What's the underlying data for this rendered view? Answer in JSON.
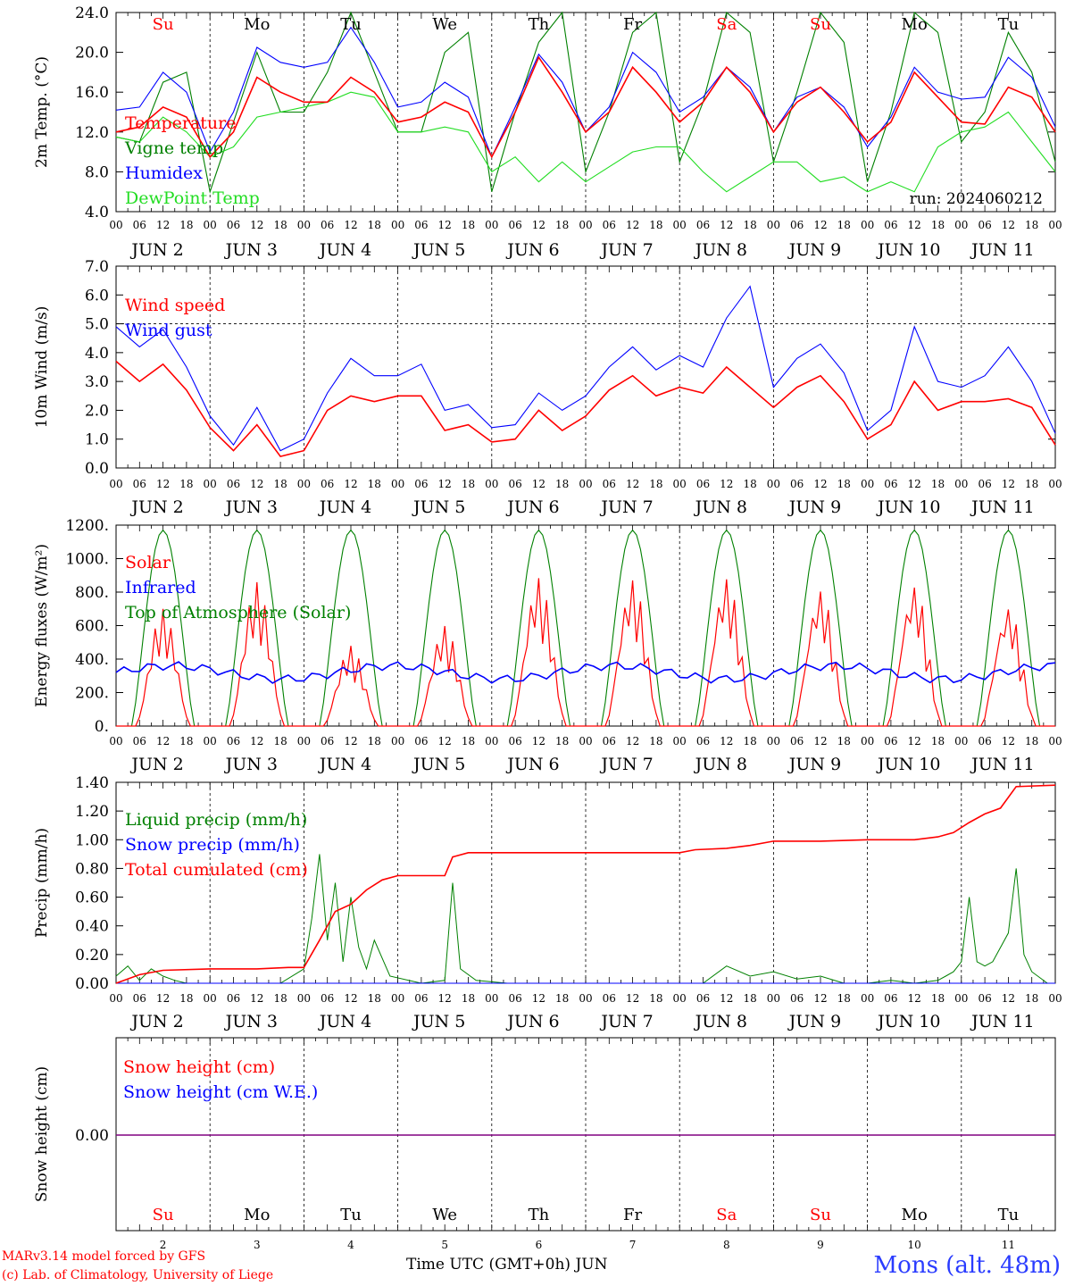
{
  "footer": {
    "model_line": "MARv3.14 model forced by GFS",
    "copyright_line": "(c) Lab. of Climatology, University of Liege",
    "time_label": "Time UTC (GMT+0h)",
    "month_label": "JUN",
    "station": "Mons (alt. 48m)"
  },
  "colors": {
    "red": "#ff0000",
    "green": "#008000",
    "blue": "#0000ff",
    "lightgreen": "#22dd22",
    "purple": "#800080"
  },
  "hour_ticks": [
    "00",
    "06",
    "12",
    "18"
  ],
  "day_labels": [
    "JUN  2",
    "JUN  3",
    "JUN  4",
    "JUN  5",
    "JUN  6",
    "JUN  7",
    "JUN  8",
    "JUN  9",
    "JUN 10",
    "JUN 11"
  ],
  "weekdays": [
    {
      "label": "Su",
      "color": "#ff0000"
    },
    {
      "label": "Mo",
      "color": "#000000"
    },
    {
      "label": "Tu",
      "color": "#000000"
    },
    {
      "label": "We",
      "color": "#000000"
    },
    {
      "label": "Th",
      "color": "#000000"
    },
    {
      "label": "Fr",
      "color": "#000000"
    },
    {
      "label": "Sa",
      "color": "#ff0000"
    },
    {
      "label": "Su",
      "color": "#ff0000"
    },
    {
      "label": "Mo",
      "color": "#000000"
    },
    {
      "label": "Tu",
      "color": "#000000"
    }
  ],
  "day_numbers": [
    "2",
    "3",
    "4",
    "5",
    "6",
    "7",
    "8",
    "9",
    "10",
    "11"
  ],
  "chart_data": [
    {
      "type": "line",
      "ylabel": "2m Temp. (°C)",
      "ylim": [
        4,
        24
      ],
      "yticks": [
        "4.0",
        "8.0",
        "12.0",
        "16.0",
        "20.0",
        "24.0"
      ],
      "run_label": "run: 2024060212",
      "x_unit": "hours since 2024-06-02 00 UTC",
      "series": [
        {
          "name": "Temperature",
          "color": "#ff0000",
          "x": [
            0,
            6,
            12,
            18,
            24,
            30,
            36,
            42,
            48,
            54,
            60,
            66,
            72,
            78,
            84,
            90,
            96,
            102,
            108,
            114,
            120,
            126,
            132,
            138,
            144,
            150,
            156,
            162,
            168,
            174,
            180,
            186,
            192,
            198,
            204,
            210,
            216,
            222,
            228,
            234,
            240
          ],
          "y": [
            12,
            12.5,
            14.5,
            13.5,
            9.5,
            12,
            17.5,
            16,
            15,
            15,
            17.5,
            16,
            13,
            13.5,
            15,
            14,
            9.5,
            14,
            19.5,
            16,
            12,
            14,
            18.5,
            16,
            13,
            15,
            18.5,
            16,
            12,
            15,
            16.5,
            14,
            11,
            13,
            18,
            15.5,
            13,
            12.8,
            16.5,
            15.5,
            12
          ]
        },
        {
          "name": "Vigne temp",
          "color": "#008000",
          "x": [
            0,
            6,
            12,
            18,
            24,
            30,
            36,
            42,
            48,
            54,
            60,
            66,
            72,
            78,
            84,
            90,
            96,
            102,
            108,
            114,
            120,
            126,
            132,
            138,
            144,
            150,
            156,
            162,
            168,
            174,
            180,
            186,
            192,
            198,
            204,
            210,
            216,
            222,
            228,
            234,
            240
          ],
          "y": [
            11.5,
            11,
            17,
            18,
            6,
            13,
            20,
            14,
            14,
            18,
            24,
            18,
            12,
            12,
            20,
            22,
            6,
            14,
            21,
            24,
            8,
            14,
            22,
            24,
            9,
            15,
            24,
            22,
            9,
            16,
            24,
            21,
            7,
            14,
            24,
            22,
            11,
            14,
            22,
            18,
            9
          ]
        },
        {
          "name": "Humidex",
          "color": "#0000ff",
          "x": [
            0,
            6,
            12,
            18,
            24,
            30,
            36,
            42,
            48,
            54,
            60,
            66,
            72,
            78,
            84,
            90,
            96,
            102,
            108,
            114,
            120,
            126,
            132,
            138,
            144,
            150,
            156,
            162,
            168,
            174,
            180,
            186,
            192,
            198,
            204,
            210,
            216,
            222,
            228,
            234,
            240
          ],
          "y": [
            14.2,
            14.5,
            18,
            16,
            10,
            14,
            20.5,
            19,
            18.5,
            19,
            22.5,
            19,
            14.5,
            15,
            17,
            15.5,
            9.5,
            14.5,
            19.8,
            17,
            12,
            14.5,
            20,
            18,
            14,
            15.5,
            18.5,
            16.5,
            12,
            15.5,
            16.5,
            14.5,
            10.5,
            13.5,
            18.5,
            16,
            15.3,
            15.5,
            19.5,
            17.5,
            12.5
          ]
        },
        {
          "name": "DewPoint Temp",
          "color": "#22dd22",
          "x": [
            0,
            6,
            12,
            18,
            24,
            30,
            36,
            42,
            48,
            54,
            60,
            66,
            72,
            78,
            84,
            90,
            96,
            102,
            108,
            114,
            120,
            126,
            132,
            138,
            144,
            150,
            156,
            162,
            168,
            174,
            180,
            186,
            192,
            198,
            204,
            210,
            216,
            222,
            228,
            234,
            240
          ],
          "y": [
            11.5,
            11,
            13.5,
            12,
            9.5,
            10.5,
            13.5,
            14,
            14.5,
            15,
            16,
            15.5,
            12,
            12,
            12.5,
            12,
            8,
            9.5,
            7,
            9,
            7,
            8.5,
            10,
            10.5,
            10.5,
            8,
            6,
            7.5,
            9,
            9,
            7,
            7.5,
            6,
            7,
            6,
            10.5,
            12,
            12.5,
            14,
            11,
            8
          ]
        }
      ]
    },
    {
      "type": "line",
      "ylabel": "10m Wind (m/s)",
      "ylim": [
        0,
        7
      ],
      "yticks": [
        "0.0",
        "1.0",
        "2.0",
        "3.0",
        "4.0",
        "5.0",
        "6.0",
        "7.0"
      ],
      "ref_line": 5.0,
      "series": [
        {
          "name": "Wind speed",
          "color": "#ff0000",
          "x": [
            0,
            6,
            12,
            18,
            24,
            30,
            36,
            42,
            48,
            54,
            60,
            66,
            72,
            78,
            84,
            90,
            96,
            102,
            108,
            114,
            120,
            126,
            132,
            138,
            144,
            150,
            156,
            162,
            168,
            174,
            180,
            186,
            192,
            198,
            204,
            210,
            216,
            222,
            228,
            234,
            240
          ],
          "y": [
            3.7,
            3,
            3.6,
            2.7,
            1.4,
            0.6,
            1.5,
            0.4,
            0.6,
            2,
            2.5,
            2.3,
            2.5,
            2.5,
            1.3,
            1.5,
            0.9,
            1,
            2,
            1.3,
            1.8,
            2.7,
            3.2,
            2.5,
            2.8,
            2.6,
            3.5,
            2.8,
            2.1,
            2.8,
            3.2,
            2.3,
            1,
            1.5,
            3,
            2,
            2.3,
            2.3,
            2.4,
            2.1,
            0.8
          ]
        },
        {
          "name": "Wind gust",
          "color": "#0000ff",
          "x": [
            0,
            6,
            12,
            18,
            24,
            30,
            36,
            42,
            48,
            54,
            60,
            66,
            72,
            78,
            84,
            90,
            96,
            102,
            108,
            114,
            120,
            126,
            132,
            138,
            144,
            150,
            156,
            162,
            168,
            174,
            180,
            186,
            192,
            198,
            204,
            210,
            216,
            222,
            228,
            234,
            240
          ],
          "y": [
            4.9,
            4.2,
            4.8,
            3.5,
            1.8,
            0.8,
            2.1,
            0.6,
            1,
            2.6,
            3.8,
            3.2,
            3.2,
            3.6,
            2,
            2.2,
            1.4,
            1.5,
            2.6,
            2,
            2.5,
            3.5,
            4.2,
            3.4,
            3.9,
            3.5,
            5.2,
            6.3,
            2.8,
            3.8,
            4.3,
            3.3,
            1.3,
            2,
            4.9,
            3,
            2.8,
            3.2,
            4.2,
            3,
            1.2
          ]
        }
      ]
    },
    {
      "type": "line",
      "ylabel": "Energy fluxes (W/m²)",
      "ylim": [
        0,
        1200
      ],
      "yticks": [
        "0.",
        "200.",
        "400.",
        "600.",
        "800.",
        "1000.",
        "1200."
      ],
      "series": [
        {
          "name": "Solar",
          "color": "#ff0000",
          "peaks": [
            {
              "day": 0,
              "max": 700
            },
            {
              "day": 1,
              "max": 860
            },
            {
              "day": 2,
              "max": 480
            },
            {
              "day": 3,
              "max": 600
            },
            {
              "day": 4,
              "max": 890
            },
            {
              "day": 5,
              "max": 880
            },
            {
              "day": 6,
              "max": 890
            },
            {
              "day": 7,
              "max": 820
            },
            {
              "day": 8,
              "max": 850
            },
            {
              "day": 9,
              "max": 720
            }
          ]
        },
        {
          "name": "Infrared",
          "color": "#0000ff",
          "base": 320
        },
        {
          "name": "Top of Atmosphere (Solar)",
          "color": "#008000",
          "max": 1170
        }
      ]
    },
    {
      "type": "line",
      "ylabel": "Precip (mm/h)",
      "ylim": [
        0,
        1.4
      ],
      "yticks": [
        "0.00",
        "0.20",
        "0.40",
        "0.60",
        "0.80",
        "1.00",
        "1.20",
        "1.40"
      ],
      "series": [
        {
          "name": "Liquid precip (mm/h)",
          "color": "#008000",
          "x": [
            0,
            3,
            6,
            9,
            12,
            15,
            18,
            24,
            30,
            36,
            42,
            48,
            50,
            52,
            54,
            56,
            58,
            60,
            62,
            64,
            66,
            70,
            78,
            84,
            86,
            88,
            92,
            100,
            120,
            150,
            156,
            162,
            168,
            174,
            180,
            186,
            192,
            198,
            204,
            210,
            212,
            214,
            216,
            218,
            220,
            222,
            224,
            228,
            230,
            232,
            234,
            238,
            240
          ],
          "y": [
            0.05,
            0.12,
            0.02,
            0.1,
            0.05,
            0.02,
            0,
            0,
            0,
            0,
            0,
            0.1,
            0.45,
            0.9,
            0.3,
            0.7,
            0.15,
            0.6,
            0.25,
            0.1,
            0.3,
            0.05,
            0,
            0.02,
            0.7,
            0.1,
            0.02,
            0,
            0,
            0,
            0.12,
            0.05,
            0.08,
            0.03,
            0.05,
            0,
            0,
            0.02,
            0,
            0.02,
            0.05,
            0.08,
            0.15,
            0.6,
            0.15,
            0.12,
            0.15,
            0.35,
            0.8,
            0.2,
            0.08,
            0,
            0
          ]
        },
        {
          "name": "Snow precip (mm/h)",
          "color": "#0000ff",
          "x": [
            0,
            240
          ],
          "y": [
            0,
            0
          ]
        },
        {
          "name": "Total cumulated (cm)",
          "color": "#ff0000",
          "x": [
            0,
            6,
            12,
            24,
            36,
            44,
            48,
            52,
            56,
            60,
            64,
            68,
            72,
            80,
            84,
            86,
            90,
            96,
            120,
            144,
            148,
            156,
            162,
            168,
            180,
            192,
            204,
            210,
            214,
            218,
            222,
            226,
            230,
            240
          ],
          "y": [
            0,
            0.06,
            0.09,
            0.1,
            0.1,
            0.11,
            0.11,
            0.3,
            0.5,
            0.55,
            0.65,
            0.72,
            0.75,
            0.75,
            0.75,
            0.88,
            0.91,
            0.91,
            0.91,
            0.91,
            0.93,
            0.94,
            0.96,
            0.99,
            0.99,
            1.0,
            1.0,
            1.02,
            1.05,
            1.12,
            1.18,
            1.22,
            1.37,
            1.38
          ]
        }
      ]
    },
    {
      "type": "line",
      "ylabel": "Snow height (cm)",
      "yticks": [
        "0.00"
      ],
      "series": [
        {
          "name": "Snow height (cm)",
          "color": "#ff0000",
          "x": [
            0,
            240
          ],
          "y": [
            0,
            0
          ]
        },
        {
          "name": "Snow height (cm W.E.)",
          "color": "#0000ff",
          "x": [
            0,
            240
          ],
          "y": [
            0,
            0
          ]
        }
      ]
    }
  ]
}
